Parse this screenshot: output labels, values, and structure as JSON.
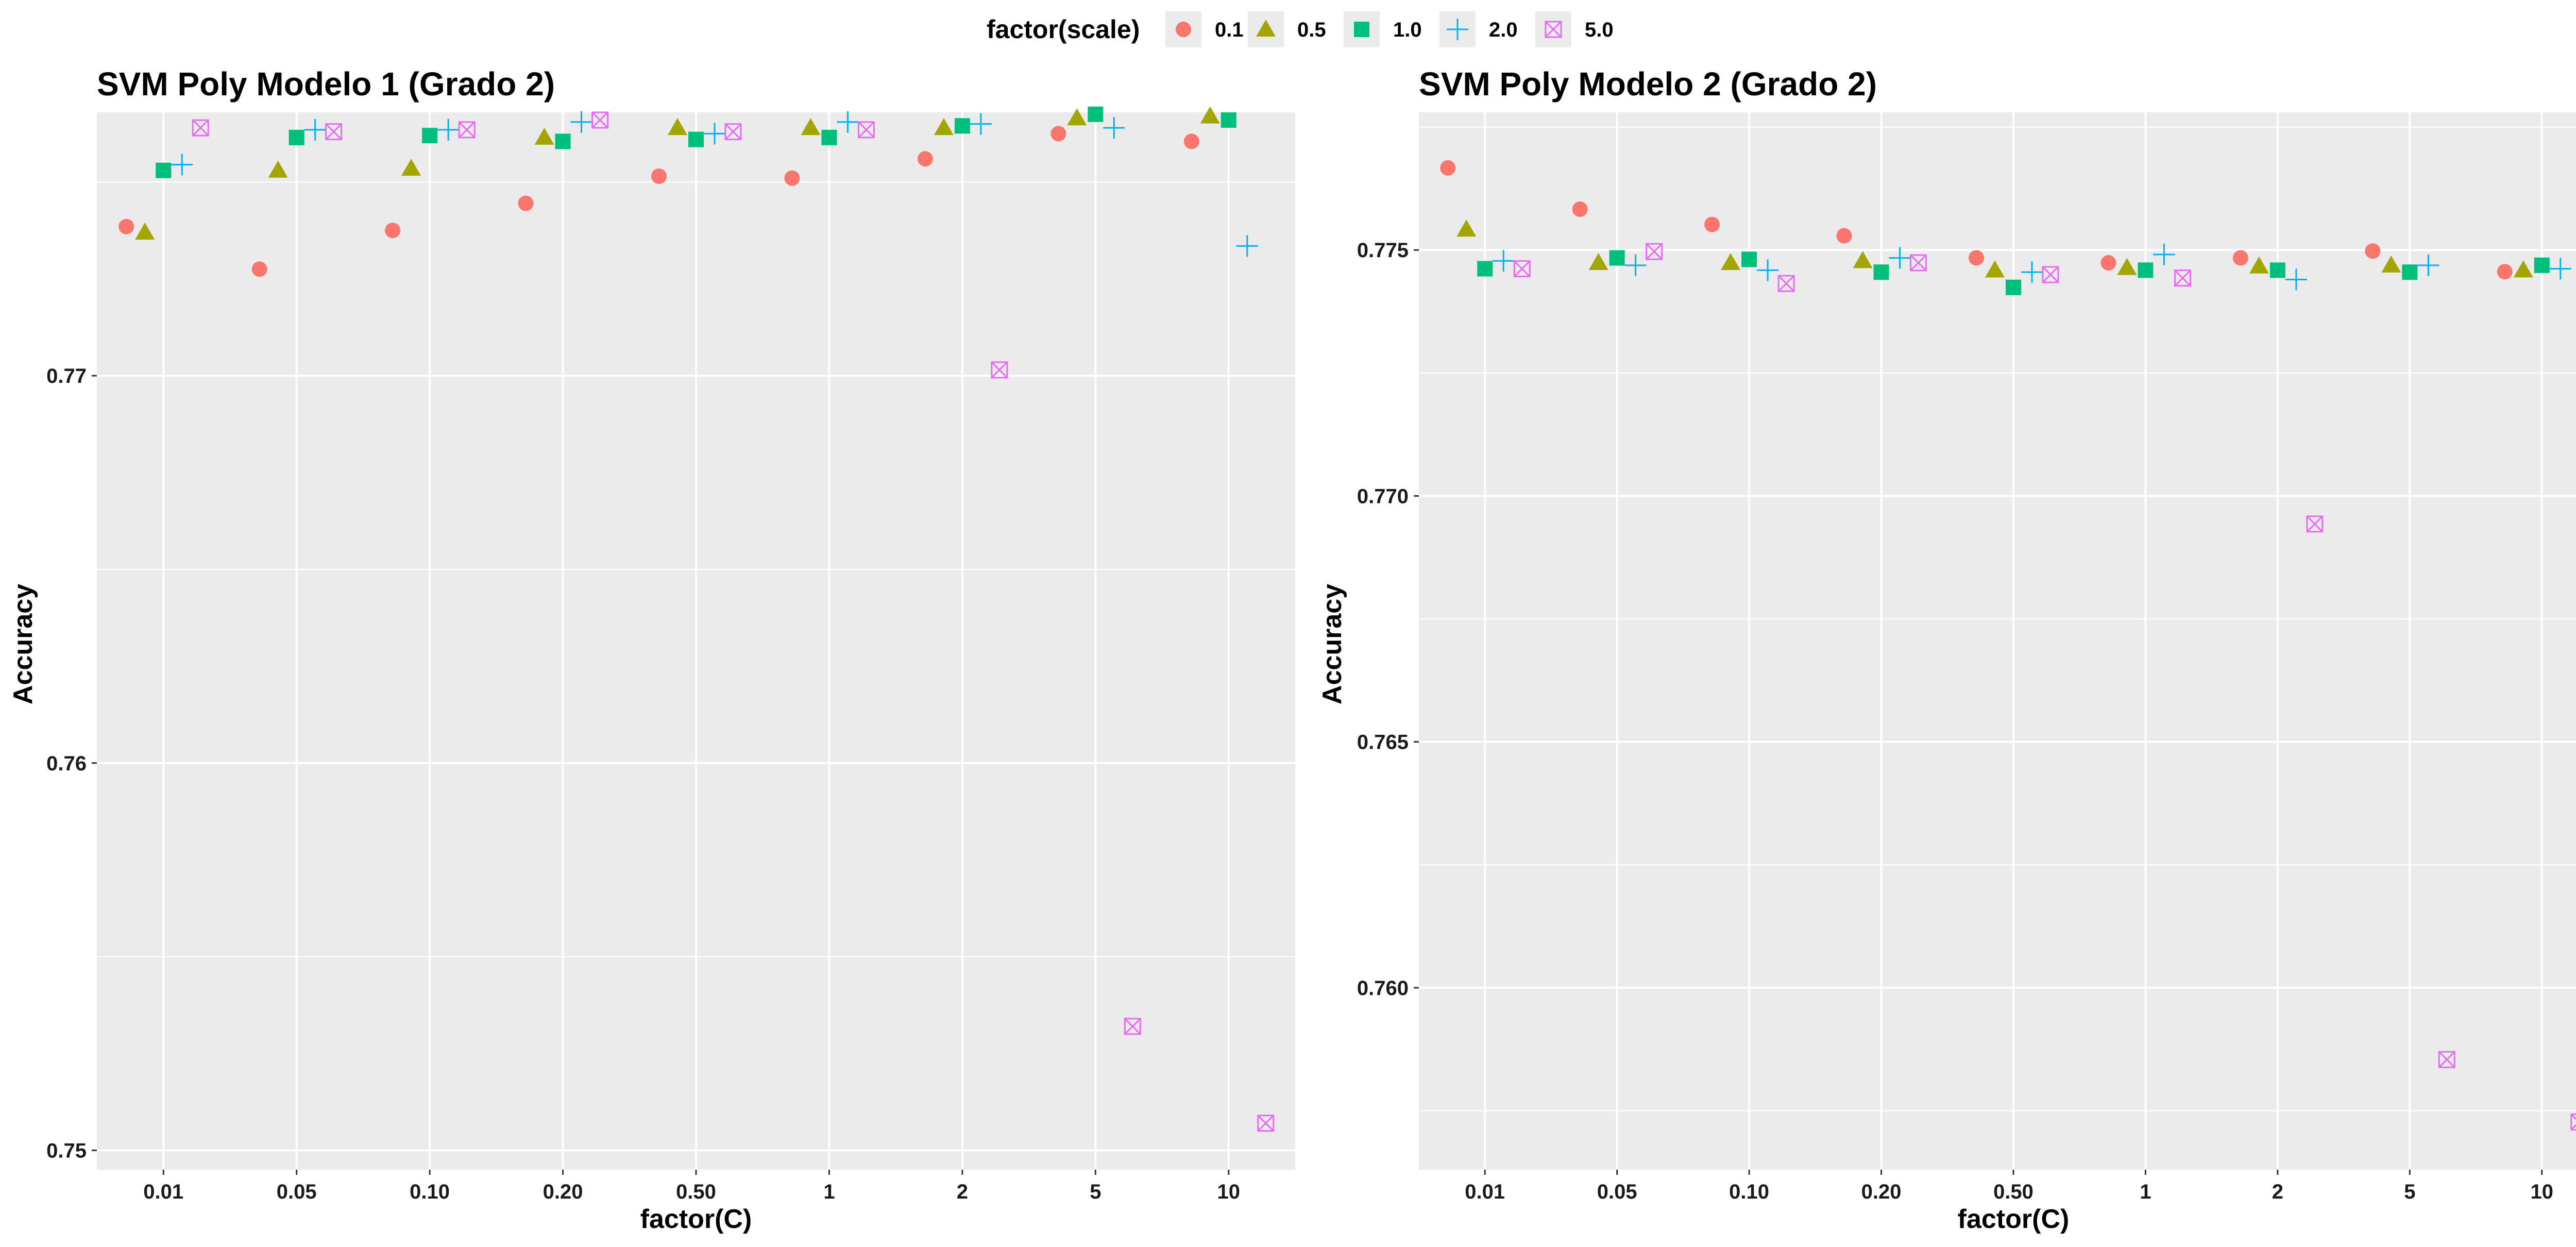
{
  "legend": {
    "title": "factor(scale)",
    "entries": [
      {
        "label": "0.1",
        "color": "#F8766D",
        "shape": "circle"
      },
      {
        "label": "0.5",
        "color": "#A3A500",
        "shape": "triangle"
      },
      {
        "label": "1.0",
        "color": "#00BF7D",
        "shape": "square"
      },
      {
        "label": "2.0",
        "color": "#00B0F6",
        "shape": "plus"
      },
      {
        "label": "5.0",
        "color": "#E76BF3",
        "shape": "boxcross"
      }
    ],
    "placement": "top"
  },
  "chart_data": [
    {
      "type": "scatter",
      "title": "SVM Poly Modelo 1 (Grado 2)",
      "xlabel": "factor(C)",
      "ylabel": "Accuracy",
      "categories": [
        "0.01",
        "0.05",
        "0.10",
        "0.20",
        "0.50",
        "1",
        "2",
        "5",
        "10"
      ],
      "ylim": [
        0.7495,
        0.7768
      ],
      "yticks": [
        "0.750",
        "0.760",
        "0.770"
      ],
      "yticks_display": [
        "0.75",
        "0.76",
        "0.77"
      ],
      "grid": true,
      "legend_placement": "top",
      "series": [
        {
          "name": "0.1",
          "values": [
            0.77385,
            0.77275,
            0.77375,
            0.77445,
            0.77515,
            0.7751,
            0.7756,
            0.77625,
            0.77605
          ]
        },
        {
          "name": "0.5",
          "values": [
            0.7737,
            0.7753,
            0.77535,
            0.77615,
            0.7764,
            0.7764,
            0.7764,
            0.77665,
            0.7767
          ]
        },
        {
          "name": "1.0",
          "values": [
            0.7753,
            0.77615,
            0.7762,
            0.77605,
            0.7761,
            0.77615,
            0.77645,
            0.77675,
            0.7766
          ]
        },
        {
          "name": "2.0",
          "values": [
            0.77545,
            0.77635,
            0.77635,
            0.77655,
            0.77625,
            0.77655,
            0.7765,
            0.7764,
            0.77335
          ]
        },
        {
          "name": "5.0",
          "values": [
            0.7764,
            0.7763,
            0.77635,
            0.7766,
            0.7763,
            0.77635,
            0.77015,
            0.7532,
            0.7507
          ]
        }
      ]
    },
    {
      "type": "scatter",
      "title": "SVM Poly Modelo 2 (Grado 2)",
      "xlabel": "factor(C)",
      "ylabel": "Accuracy",
      "categories": [
        "0.01",
        "0.05",
        "0.10",
        "0.20",
        "0.50",
        "1",
        "2",
        "5",
        "10"
      ],
      "ylim": [
        0.7563,
        0.7778
      ],
      "yticks": [
        "0.760",
        "0.765",
        "0.770",
        "0.775"
      ],
      "yticks_display": [
        "0.760",
        "0.765",
        "0.770",
        "0.775"
      ],
      "grid": true,
      "legend_placement": "top",
      "series": [
        {
          "name": "0.1",
          "values": [
            0.77667,
            0.77583,
            0.77552,
            0.77529,
            0.77484,
            0.77474,
            0.77484,
            0.77498,
            0.77456
          ]
        },
        {
          "name": "0.5",
          "values": [
            0.77542,
            0.77474,
            0.77474,
            0.77478,
            0.77459,
            0.77464,
            0.77467,
            0.77469,
            0.77459
          ]
        },
        {
          "name": "1.0",
          "values": [
            0.77462,
            0.77484,
            0.77481,
            0.77455,
            0.77424,
            0.77459,
            0.77459,
            0.77455,
            0.77469
          ]
        },
        {
          "name": "2.0",
          "values": [
            0.77478,
            0.77469,
            0.77459,
            0.77484,
            0.77455,
            0.77491,
            0.7744,
            0.77469,
            0.77462
          ]
        },
        {
          "name": "5.0",
          "values": [
            0.77462,
            0.77497,
            0.77432,
            0.77474,
            0.7745,
            0.77443,
            0.76943,
            0.75854,
            0.75727
          ]
        }
      ]
    }
  ]
}
